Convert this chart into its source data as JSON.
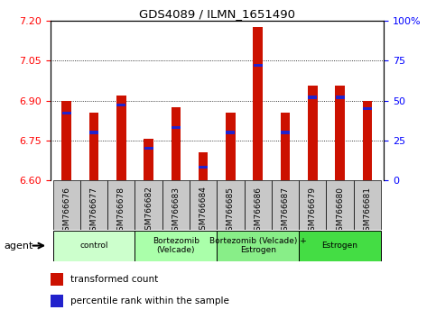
{
  "title": "GDS4089 / ILMN_1651490",
  "samples": [
    "GSM766676",
    "GSM766677",
    "GSM766678",
    "GSM766682",
    "GSM766683",
    "GSM766684",
    "GSM766685",
    "GSM766686",
    "GSM766687",
    "GSM766679",
    "GSM766680",
    "GSM766681"
  ],
  "transformed_count": [
    6.9,
    6.855,
    6.92,
    6.755,
    6.875,
    6.705,
    6.855,
    7.175,
    6.855,
    6.955,
    6.955,
    6.9
  ],
  "percentile_rank": [
    42,
    30,
    47,
    20,
    33,
    8,
    30,
    72,
    30,
    52,
    52,
    45
  ],
  "ymin": 6.6,
  "ymax": 7.2,
  "yticks_left": [
    6.6,
    6.75,
    6.9,
    7.05,
    7.2
  ],
  "yticks_right": [
    0,
    25,
    50,
    75,
    100
  ],
  "bar_color": "#cc1100",
  "marker_color": "#2222cc",
  "groups": [
    {
      "label": "control",
      "start": 0,
      "end": 3,
      "color": "#ccffcc"
    },
    {
      "label": "Bortezomib\n(Velcade)",
      "start": 3,
      "end": 6,
      "color": "#aaffaa"
    },
    {
      "label": "Bortezomib (Velcade) +\nEstrogen",
      "start": 6,
      "end": 9,
      "color": "#88ee88"
    },
    {
      "label": "Estrogen",
      "start": 9,
      "end": 12,
      "color": "#44dd44"
    }
  ],
  "legend_items": [
    {
      "color": "#cc1100",
      "label": "transformed count"
    },
    {
      "color": "#2222cc",
      "label": "percentile rank within the sample"
    }
  ],
  "agent_label": "agent",
  "bar_width": 0.35,
  "figsize": [
    4.83,
    3.54
  ],
  "dpi": 100
}
